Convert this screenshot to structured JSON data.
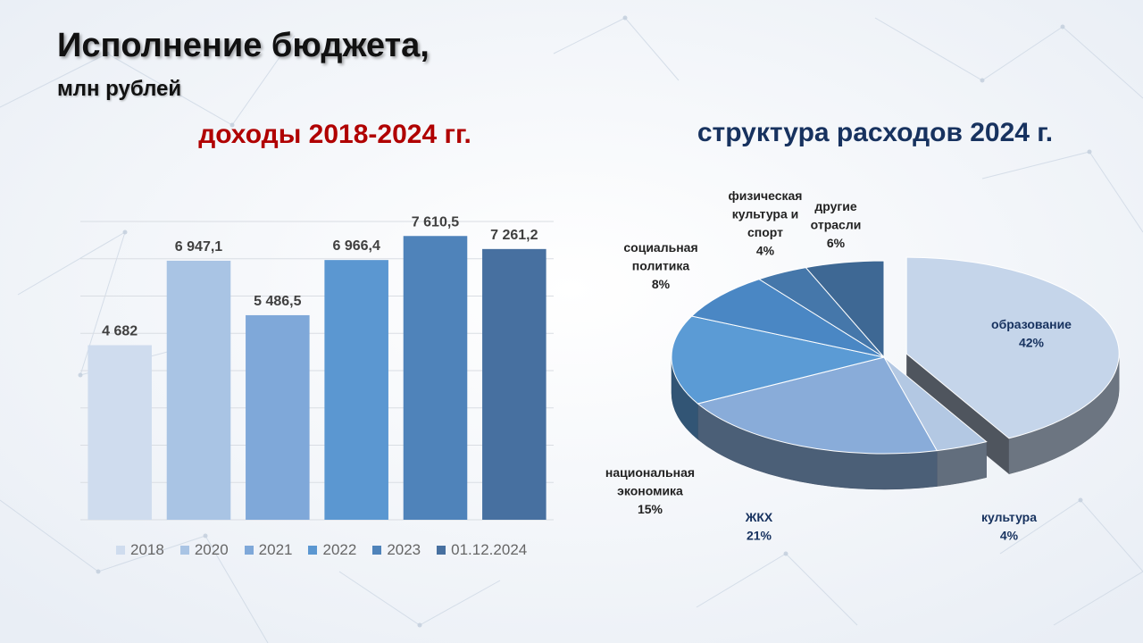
{
  "header": {
    "title": "Исполнение бюджета,",
    "subtitle": "млн рублей"
  },
  "left": {
    "heading": "доходы 2018-2024 гг."
  },
  "right": {
    "heading": "структура расходов 2024 г."
  },
  "chart_data": [
    {
      "type": "bar",
      "categories": [
        "2018",
        "2020",
        "2021",
        "2022",
        "2023",
        "01.12.2024"
      ],
      "values": [
        4682,
        6947.1,
        5486.5,
        6966.4,
        7610.5,
        7261.2
      ],
      "data_labels": [
        "4 682",
        "6 947,1",
        "5 486,5",
        "6 966,4",
        "7 610,5",
        "7 261,2"
      ],
      "colors": [
        "#cfdcee",
        "#a9c4e4",
        "#7fa8d9",
        "#5b97d1",
        "#4f83ba",
        "#4770a0"
      ],
      "ylim": [
        0,
        8000
      ],
      "grid": true,
      "legend": "bottom"
    },
    {
      "type": "pie",
      "subtype": "3d-exploded",
      "slices": [
        {
          "label": "образование",
          "pct_label": "42%",
          "value": 42,
          "color": "#c5d5ea",
          "exploded": true
        },
        {
          "label": "культура",
          "pct_label": "4%",
          "value": 4,
          "color": "#b3c8e3"
        },
        {
          "label": "ЖКХ",
          "pct_label": "21%",
          "value": 21,
          "color": "#89acd9"
        },
        {
          "label": "национальная экономика",
          "pct_label": "15%",
          "value": 15,
          "color": "#5b9bd5"
        },
        {
          "label": "социальная политика",
          "pct_label": "8%",
          "value": 8,
          "color": "#4a87c4"
        },
        {
          "label": "физическая культура и спорт",
          "pct_label": "4%",
          "value": 4,
          "color": "#4577aa"
        },
        {
          "label": "другие отрасли",
          "pct_label": "6%",
          "value": 6,
          "color": "#3e6894"
        }
      ]
    }
  ]
}
